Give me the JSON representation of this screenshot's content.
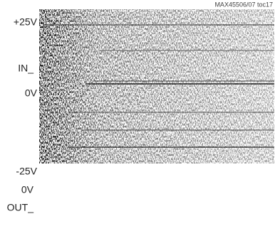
{
  "figure_id": "MAX45506/07 toc17",
  "labels": [
    "+25V",
    "IN_",
    "0V",
    "-25V",
    "0V",
    "OUT_"
  ]
}
